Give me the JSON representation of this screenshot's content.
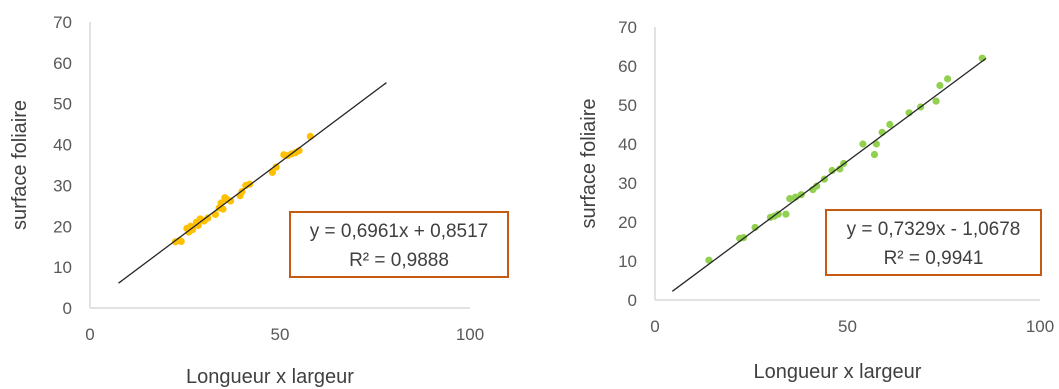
{
  "chart_data": [
    {
      "type": "scatter",
      "xlabel": "Longueur x largeur",
      "ylabel": "surface foliaire",
      "xlim": [
        0,
        100
      ],
      "ylim": [
        0,
        70
      ],
      "xticks": [
        "0",
        "50",
        "100"
      ],
      "yticks": [
        "0",
        "10",
        "20",
        "30",
        "40",
        "50",
        "60",
        "70"
      ],
      "grid": false,
      "point_color": "#FFC000",
      "trendline": {
        "slope": 0.6961,
        "intercept": 0.8517,
        "x_range": [
          7.5,
          78
        ],
        "equation": "y = 0,6961x + 0,8517",
        "r2": "R² = 0,9888",
        "box_color": "#C55A11"
      },
      "points": [
        [
          22.5,
          16.2
        ],
        [
          23.5,
          16.5
        ],
        [
          24,
          16.3
        ],
        [
          25.5,
          19.5
        ],
        [
          26,
          18.6
        ],
        [
          26.5,
          20
        ],
        [
          27,
          19.2
        ],
        [
          28,
          21
        ],
        [
          28.5,
          20.2
        ],
        [
          29,
          21.8
        ],
        [
          30,
          21.3
        ],
        [
          31,
          22
        ],
        [
          33,
          22.9
        ],
        [
          34,
          24.5
        ],
        [
          34.5,
          25.7
        ],
        [
          35,
          24.2
        ],
        [
          35.5,
          27
        ],
        [
          36,
          26.6
        ],
        [
          37,
          26.2
        ],
        [
          39.5,
          27.5
        ],
        [
          40,
          28.5
        ],
        [
          41,
          30
        ],
        [
          42,
          30.3
        ],
        [
          48,
          33.2
        ],
        [
          49,
          34.5
        ],
        [
          51,
          37.5
        ],
        [
          52,
          37.3
        ],
        [
          53,
          37.7
        ],
        [
          54,
          38
        ],
        [
          55,
          38.5
        ],
        [
          58,
          42
        ]
      ]
    },
    {
      "type": "scatter",
      "xlabel": "Longueur x largeur",
      "ylabel": "surface foliaire",
      "xlim": [
        0,
        100
      ],
      "ylim": [
        0,
        70
      ],
      "xticks": [
        "0",
        "50",
        "100"
      ],
      "yticks": [
        "0",
        "10",
        "20",
        "30",
        "40",
        "50",
        "60",
        "70"
      ],
      "grid": false,
      "point_color": "#92D050",
      "trendline": {
        "slope": 0.7329,
        "intercept": -1.0678,
        "x_range": [
          4.5,
          86
        ],
        "equation": "y = 0,7329x - 1,0678",
        "r2": "R² = 0,9941",
        "box_color": "#C55A11"
      },
      "points": [
        [
          14,
          10.2
        ],
        [
          22,
          15.8
        ],
        [
          23,
          16
        ],
        [
          26,
          18.6
        ],
        [
          30,
          21.2
        ],
        [
          31,
          21.5
        ],
        [
          32,
          22
        ],
        [
          34,
          22
        ],
        [
          35,
          26
        ],
        [
          36.5,
          26.4
        ],
        [
          38,
          27
        ],
        [
          41,
          28.3
        ],
        [
          42,
          29.2
        ],
        [
          44,
          31
        ],
        [
          46,
          33.2
        ],
        [
          48,
          33.6
        ],
        [
          49,
          35
        ],
        [
          54,
          40
        ],
        [
          57,
          37.3
        ],
        [
          57.5,
          40
        ],
        [
          59,
          43
        ],
        [
          61,
          45
        ],
        [
          66,
          48
        ],
        [
          69,
          49.5
        ],
        [
          73,
          51
        ],
        [
          74,
          55
        ],
        [
          76,
          56.7
        ],
        [
          85,
          62
        ]
      ]
    }
  ]
}
